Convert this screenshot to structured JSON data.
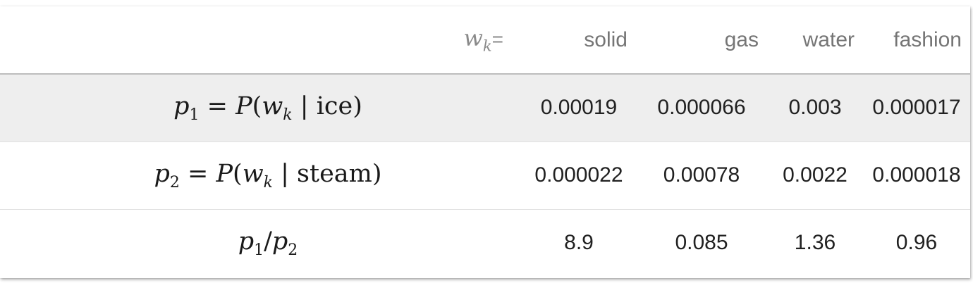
{
  "header": {
    "wk_label": "w",
    "wk_sub": "k",
    "wk_eq": "=",
    "columns": [
      "solid",
      "gas",
      "water",
      "fashion"
    ]
  },
  "rows": [
    {
      "label": {
        "var": "p",
        "var_sub": "1",
        "eq": " = ",
        "fn": "P",
        "open": "(",
        "arg": "w",
        "arg_sub": "k",
        "bar": " | ",
        "cond": "ice",
        "close": ")"
      },
      "values": [
        "0.00019",
        "0.000066",
        "0.003",
        "0.000017"
      ]
    },
    {
      "label": {
        "var": "p",
        "var_sub": "2",
        "eq": " = ",
        "fn": "P",
        "open": "(",
        "arg": "w",
        "arg_sub": "k",
        "bar": " | ",
        "cond": "steam",
        "close": ")"
      },
      "values": [
        "0.000022",
        "0.00078",
        "0.0022",
        "0.000018"
      ]
    },
    {
      "label": {
        "num": "p",
        "num_sub": "1",
        "slash": "/",
        "den": "p",
        "den_sub": "2"
      },
      "values": [
        "8.9",
        "0.085",
        "1.36",
        "0.96"
      ]
    }
  ]
}
